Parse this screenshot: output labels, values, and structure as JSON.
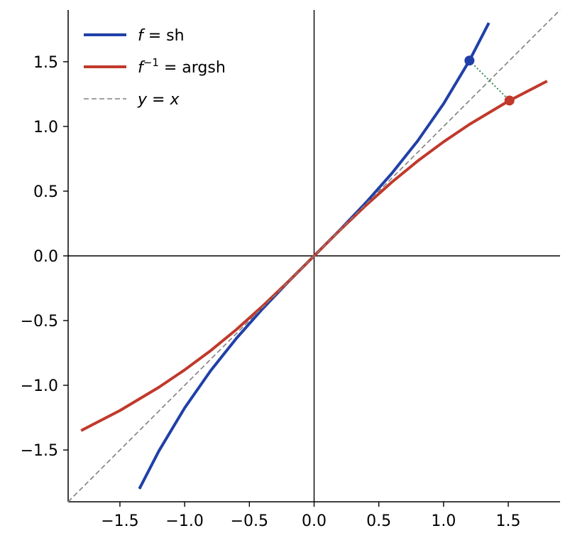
{
  "chart_data": {
    "type": "line",
    "title": "",
    "xlabel": "",
    "ylabel": "",
    "xlim": [
      -1.9,
      1.9
    ],
    "ylim": [
      -1.9,
      1.9
    ],
    "x_ticks": [
      -1.5,
      -1.0,
      -0.5,
      0.0,
      0.5,
      1.0,
      1.5
    ],
    "y_ticks": [
      -1.5,
      -1.0,
      -0.5,
      0.0,
      0.5,
      1.0,
      1.5
    ],
    "x_tick_labels": [
      "−1.5",
      "−1.0",
      "−0.5",
      "0.0",
      "0.5",
      "1.0",
      "1.5"
    ],
    "y_tick_labels": [
      "−1.5",
      "−1.0",
      "−0.5",
      "0.0",
      "0.5",
      "1.0",
      "1.5"
    ],
    "grid": false,
    "legend_position": "top-left",
    "series": [
      {
        "name": "f = sh",
        "name_parts": {
          "sym": "f",
          "sup": "",
          "rest": " = sh"
        },
        "color": "#2040a8",
        "style": "solid",
        "x": [
          -1.35,
          -1.2,
          -1.0,
          -0.8,
          -0.6,
          -0.4,
          -0.2,
          0.0,
          0.2,
          0.4,
          0.6,
          0.8,
          1.0,
          1.2,
          1.35
        ],
        "y": [
          -1.8,
          -1.509,
          -1.175,
          -0.888,
          -0.637,
          -0.411,
          -0.201,
          0.0,
          0.201,
          0.411,
          0.637,
          0.888,
          1.175,
          1.509,
          1.8
        ]
      },
      {
        "name": "f⁻¹ = argsh",
        "name_parts": {
          "sym": "f",
          "sup": "−1",
          "rest": " = argsh"
        },
        "color": "#c0392b",
        "style": "solid",
        "x": [
          -1.8,
          -1.5,
          -1.2,
          -1.0,
          -0.8,
          -0.6,
          -0.4,
          -0.2,
          0.0,
          0.2,
          0.4,
          0.6,
          0.8,
          1.0,
          1.2,
          1.5,
          1.8
        ],
        "y": [
          -1.35,
          -1.195,
          -1.016,
          -0.881,
          -0.733,
          -0.569,
          -0.39,
          -0.199,
          0.0,
          0.199,
          0.39,
          0.569,
          0.733,
          0.881,
          1.016,
          1.195,
          1.35
        ]
      },
      {
        "name": "y = x",
        "name_parts": {
          "sym": "y",
          "sup": "",
          "rest": " = x"
        },
        "color": "#808080",
        "style": "dashed",
        "x": [
          -1.9,
          1.9
        ],
        "y": [
          -1.9,
          1.9
        ]
      }
    ],
    "points": [
      {
        "x": 1.2,
        "y": 1.509,
        "color": "#2040a8"
      },
      {
        "x": 1.509,
        "y": 1.2,
        "color": "#c0392b"
      }
    ],
    "connector": {
      "from": [
        1.2,
        1.509
      ],
      "to": [
        1.509,
        1.2
      ],
      "color": "#2e8b57",
      "style": "dotted"
    }
  }
}
